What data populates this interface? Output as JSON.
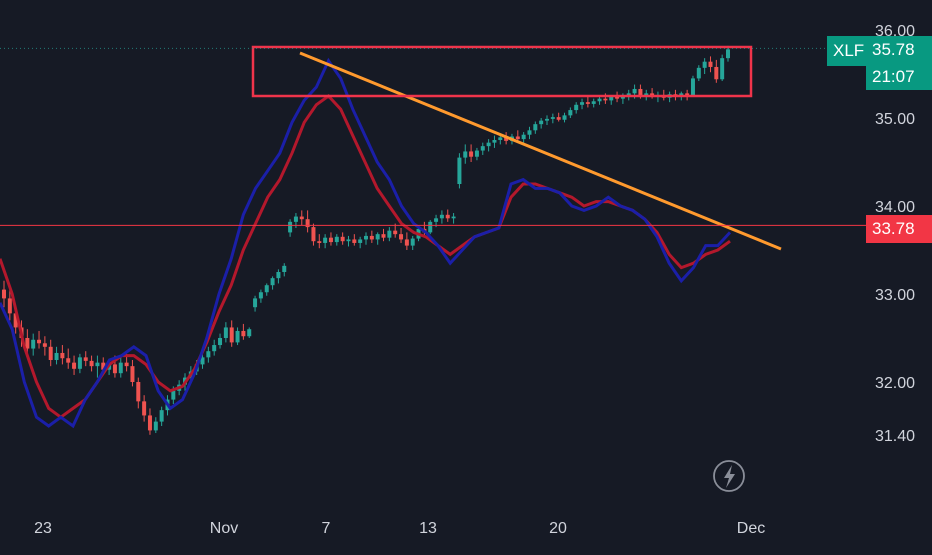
{
  "colors": {
    "background": "#161a25",
    "candle_up": "#26a69a",
    "candle_down": "#ef5350",
    "ma_fast": "#1b1fa8",
    "ma_slow": "#b3182c",
    "trendline": "#ff9a2e",
    "box": "#f0344b",
    "hline": "#f23645",
    "price_tag": "#089981",
    "level_tag": "#f23645",
    "axis_text": "#d1d4dc"
  },
  "chart_data": {
    "type": "candlestick",
    "symbol": "XLF",
    "last_price": "35.78",
    "countdown": "21:07",
    "horizontal_level": "33.78",
    "icon": "lightning-bolt-icon",
    "y_ticks": [
      "36.00",
      "35.00",
      "34.00",
      "33.00",
      "32.00",
      "31.40"
    ],
    "y_tick_values": [
      36.0,
      35.0,
      34.0,
      33.0,
      32.0,
      31.4
    ],
    "x_ticks": [
      "23",
      "Nov",
      "7",
      "13",
      "20",
      "Dec"
    ],
    "ylim": [
      31.4,
      36.0
    ],
    "candles": [
      {
        "o": 33.05,
        "h": 33.15,
        "l": 32.85,
        "c": 32.95
      },
      {
        "o": 32.95,
        "h": 33.05,
        "l": 32.7,
        "c": 32.78
      },
      {
        "o": 32.78,
        "h": 32.85,
        "l": 32.55,
        "c": 32.62
      },
      {
        "o": 32.62,
        "h": 32.7,
        "l": 32.4,
        "c": 32.5
      },
      {
        "o": 32.5,
        "h": 32.6,
        "l": 32.3,
        "c": 32.38
      },
      {
        "o": 32.38,
        "h": 32.55,
        "l": 32.3,
        "c": 32.48
      },
      {
        "o": 32.48,
        "h": 32.58,
        "l": 32.38,
        "c": 32.44
      },
      {
        "o": 32.44,
        "h": 32.52,
        "l": 32.3,
        "c": 32.4
      },
      {
        "o": 32.4,
        "h": 32.48,
        "l": 32.18,
        "c": 32.25
      },
      {
        "o": 32.25,
        "h": 32.4,
        "l": 32.2,
        "c": 32.33
      },
      {
        "o": 32.33,
        "h": 32.42,
        "l": 32.2,
        "c": 32.27
      },
      {
        "o": 32.27,
        "h": 32.38,
        "l": 32.15,
        "c": 32.22
      },
      {
        "o": 32.22,
        "h": 32.3,
        "l": 32.08,
        "c": 32.15
      },
      {
        "o": 32.15,
        "h": 32.32,
        "l": 32.1,
        "c": 32.28
      },
      {
        "o": 32.28,
        "h": 32.35,
        "l": 32.18,
        "c": 32.24
      },
      {
        "o": 32.24,
        "h": 32.3,
        "l": 32.12,
        "c": 32.18
      },
      {
        "o": 32.18,
        "h": 32.3,
        "l": 32.05,
        "c": 32.22
      },
      {
        "o": 32.22,
        "h": 32.28,
        "l": 32.1,
        "c": 32.14
      },
      {
        "o": 32.14,
        "h": 32.26,
        "l": 32.08,
        "c": 32.2
      },
      {
        "o": 32.2,
        "h": 32.3,
        "l": 32.05,
        "c": 32.1
      },
      {
        "o": 32.1,
        "h": 32.28,
        "l": 32.05,
        "c": 32.22
      },
      {
        "o": 32.22,
        "h": 32.32,
        "l": 32.12,
        "c": 32.18
      },
      {
        "o": 32.18,
        "h": 32.25,
        "l": 31.95,
        "c": 32.0
      },
      {
        "o": 32.0,
        "h": 32.05,
        "l": 31.7,
        "c": 31.78
      },
      {
        "o": 31.78,
        "h": 31.85,
        "l": 31.55,
        "c": 31.62
      },
      {
        "o": 31.62,
        "h": 31.7,
        "l": 31.4,
        "c": 31.45
      },
      {
        "o": 31.45,
        "h": 31.6,
        "l": 31.42,
        "c": 31.55
      },
      {
        "o": 31.55,
        "h": 31.72,
        "l": 31.5,
        "c": 31.68
      },
      {
        "o": 31.68,
        "h": 31.85,
        "l": 31.62,
        "c": 31.8
      },
      {
        "o": 31.8,
        "h": 31.95,
        "l": 31.75,
        "c": 31.9
      },
      {
        "o": 31.9,
        "h": 32.02,
        "l": 31.85,
        "c": 31.97
      },
      {
        "o": 31.97,
        "h": 32.1,
        "l": 31.9,
        "c": 32.05
      },
      {
        "o": 32.05,
        "h": 32.18,
        "l": 32.0,
        "c": 32.12
      },
      {
        "o": 32.12,
        "h": 32.25,
        "l": 32.08,
        "c": 32.2
      },
      {
        "o": 32.2,
        "h": 32.32,
        "l": 32.15,
        "c": 32.28
      },
      {
        "o": 32.28,
        "h": 32.4,
        "l": 32.22,
        "c": 32.35
      },
      {
        "o": 32.35,
        "h": 32.48,
        "l": 32.3,
        "c": 32.42
      },
      {
        "o": 32.42,
        "h": 32.55,
        "l": 32.38,
        "c": 32.5
      },
      {
        "o": 32.5,
        "h": 32.68,
        "l": 32.45,
        "c": 32.62
      },
      {
        "o": 32.62,
        "h": 32.7,
        "l": 32.4,
        "c": 32.45
      },
      {
        "o": 32.45,
        "h": 32.62,
        "l": 32.42,
        "c": 32.58
      },
      {
        "o": 32.58,
        "h": 32.66,
        "l": 32.48,
        "c": 32.52
      },
      {
        "o": 32.52,
        "h": 32.62,
        "l": 32.5,
        "c": 32.6
      },
      {
        "o": 32.85,
        "h": 32.98,
        "l": 32.8,
        "c": 32.95
      },
      {
        "o": 32.95,
        "h": 33.05,
        "l": 32.9,
        "c": 33.02
      },
      {
        "o": 33.02,
        "h": 33.12,
        "l": 32.98,
        "c": 33.1
      },
      {
        "o": 33.1,
        "h": 33.2,
        "l": 33.05,
        "c": 33.18
      },
      {
        "o": 33.18,
        "h": 33.28,
        "l": 33.12,
        "c": 33.25
      },
      {
        "o": 33.25,
        "h": 33.35,
        "l": 33.2,
        "c": 33.32
      },
      {
        "o": 33.7,
        "h": 33.85,
        "l": 33.65,
        "c": 33.82
      },
      {
        "o": 33.82,
        "h": 33.92,
        "l": 33.75,
        "c": 33.88
      },
      {
        "o": 33.88,
        "h": 33.95,
        "l": 33.78,
        "c": 33.85
      },
      {
        "o": 33.85,
        "h": 33.95,
        "l": 33.7,
        "c": 33.76
      },
      {
        "o": 33.76,
        "h": 33.8,
        "l": 33.55,
        "c": 33.6
      },
      {
        "o": 33.6,
        "h": 33.68,
        "l": 33.52,
        "c": 33.58
      },
      {
        "o": 33.58,
        "h": 33.68,
        "l": 33.52,
        "c": 33.64
      },
      {
        "o": 33.64,
        "h": 33.7,
        "l": 33.55,
        "c": 33.59
      },
      {
        "o": 33.59,
        "h": 33.68,
        "l": 33.55,
        "c": 33.65
      },
      {
        "o": 33.65,
        "h": 33.7,
        "l": 33.56,
        "c": 33.6
      },
      {
        "o": 33.6,
        "h": 33.66,
        "l": 33.54,
        "c": 33.62
      },
      {
        "o": 33.62,
        "h": 33.68,
        "l": 33.55,
        "c": 33.58
      },
      {
        "o": 33.58,
        "h": 33.65,
        "l": 33.52,
        "c": 33.62
      },
      {
        "o": 33.62,
        "h": 33.7,
        "l": 33.56,
        "c": 33.66
      },
      {
        "o": 33.66,
        "h": 33.72,
        "l": 33.58,
        "c": 33.62
      },
      {
        "o": 33.62,
        "h": 33.7,
        "l": 33.56,
        "c": 33.68
      },
      {
        "o": 33.68,
        "h": 33.74,
        "l": 33.6,
        "c": 33.64
      },
      {
        "o": 33.64,
        "h": 33.76,
        "l": 33.6,
        "c": 33.72
      },
      {
        "o": 33.72,
        "h": 33.8,
        "l": 33.64,
        "c": 33.68
      },
      {
        "o": 33.68,
        "h": 33.75,
        "l": 33.58,
        "c": 33.62
      },
      {
        "o": 33.62,
        "h": 33.7,
        "l": 33.5,
        "c": 33.55
      },
      {
        "o": 33.55,
        "h": 33.66,
        "l": 33.5,
        "c": 33.63
      },
      {
        "o": 33.63,
        "h": 33.76,
        "l": 33.6,
        "c": 33.74
      },
      {
        "o": 33.74,
        "h": 33.82,
        "l": 33.66,
        "c": 33.7
      },
      {
        "o": 33.7,
        "h": 33.84,
        "l": 33.68,
        "c": 33.82
      },
      {
        "o": 33.82,
        "h": 33.9,
        "l": 33.76,
        "c": 33.86
      },
      {
        "o": 33.86,
        "h": 33.95,
        "l": 33.8,
        "c": 33.9
      },
      {
        "o": 33.9,
        "h": 33.96,
        "l": 33.82,
        "c": 33.86
      },
      {
        "o": 33.86,
        "h": 33.92,
        "l": 33.8,
        "c": 33.88
      },
      {
        "o": 34.25,
        "h": 34.6,
        "l": 34.2,
        "c": 34.55
      },
      {
        "o": 34.55,
        "h": 34.7,
        "l": 34.48,
        "c": 34.62
      },
      {
        "o": 34.62,
        "h": 34.7,
        "l": 34.5,
        "c": 34.56
      },
      {
        "o": 34.56,
        "h": 34.66,
        "l": 34.52,
        "c": 34.63
      },
      {
        "o": 34.63,
        "h": 34.72,
        "l": 34.58,
        "c": 34.68
      },
      {
        "o": 34.68,
        "h": 34.76,
        "l": 34.62,
        "c": 34.72
      },
      {
        "o": 34.72,
        "h": 34.8,
        "l": 34.66,
        "c": 34.75
      },
      {
        "o": 34.75,
        "h": 34.82,
        "l": 34.7,
        "c": 34.78
      },
      {
        "o": 34.78,
        "h": 34.84,
        "l": 34.7,
        "c": 34.74
      },
      {
        "o": 34.74,
        "h": 34.82,
        "l": 34.7,
        "c": 34.79
      },
      {
        "o": 34.79,
        "h": 34.86,
        "l": 34.72,
        "c": 34.76
      },
      {
        "o": 34.76,
        "h": 34.84,
        "l": 34.72,
        "c": 34.81
      },
      {
        "o": 34.81,
        "h": 34.9,
        "l": 34.76,
        "c": 34.86
      },
      {
        "o": 34.86,
        "h": 34.96,
        "l": 34.82,
        "c": 34.93
      },
      {
        "o": 34.93,
        "h": 35.0,
        "l": 34.88,
        "c": 34.97
      },
      {
        "o": 34.97,
        "h": 35.03,
        "l": 34.92,
        "c": 34.99
      },
      {
        "o": 34.99,
        "h": 35.05,
        "l": 34.94,
        "c": 35.01
      },
      {
        "o": 35.01,
        "h": 35.06,
        "l": 34.96,
        "c": 34.98
      },
      {
        "o": 34.98,
        "h": 35.06,
        "l": 34.95,
        "c": 35.03
      },
      {
        "o": 35.03,
        "h": 35.12,
        "l": 35.0,
        "c": 35.09
      },
      {
        "o": 35.09,
        "h": 35.18,
        "l": 35.05,
        "c": 35.15
      },
      {
        "o": 35.15,
        "h": 35.22,
        "l": 35.1,
        "c": 35.18
      },
      {
        "o": 35.18,
        "h": 35.24,
        "l": 35.12,
        "c": 35.16
      },
      {
        "o": 35.16,
        "h": 35.22,
        "l": 35.12,
        "c": 35.19
      },
      {
        "o": 35.19,
        "h": 35.26,
        "l": 35.15,
        "c": 35.22
      },
      {
        "o": 35.22,
        "h": 35.28,
        "l": 35.16,
        "c": 35.2
      },
      {
        "o": 35.2,
        "h": 35.26,
        "l": 35.15,
        "c": 35.24
      },
      {
        "o": 35.24,
        "h": 35.3,
        "l": 35.18,
        "c": 35.22
      },
      {
        "o": 35.22,
        "h": 35.28,
        "l": 35.16,
        "c": 35.25
      },
      {
        "o": 35.25,
        "h": 35.32,
        "l": 35.2,
        "c": 35.28
      },
      {
        "o": 35.28,
        "h": 35.38,
        "l": 35.22,
        "c": 35.33
      },
      {
        "o": 35.33,
        "h": 35.38,
        "l": 35.22,
        "c": 35.26
      },
      {
        "o": 35.26,
        "h": 35.32,
        "l": 35.2,
        "c": 35.28
      },
      {
        "o": 35.28,
        "h": 35.34,
        "l": 35.22,
        "c": 35.24
      },
      {
        "o": 35.24,
        "h": 35.3,
        "l": 35.18,
        "c": 35.26
      },
      {
        "o": 35.26,
        "h": 35.32,
        "l": 35.2,
        "c": 35.23
      },
      {
        "o": 35.23,
        "h": 35.3,
        "l": 35.18,
        "c": 35.27
      },
      {
        "o": 35.27,
        "h": 35.32,
        "l": 35.2,
        "c": 35.24
      },
      {
        "o": 35.24,
        "h": 35.3,
        "l": 35.2,
        "c": 35.28
      },
      {
        "o": 35.28,
        "h": 35.32,
        "l": 35.2,
        "c": 35.25
      },
      {
        "o": 35.25,
        "h": 35.48,
        "l": 35.24,
        "c": 35.45
      },
      {
        "o": 35.45,
        "h": 35.6,
        "l": 35.42,
        "c": 35.57
      },
      {
        "o": 35.57,
        "h": 35.68,
        "l": 35.5,
        "c": 35.64
      },
      {
        "o": 35.64,
        "h": 35.7,
        "l": 35.52,
        "c": 35.58
      },
      {
        "o": 35.58,
        "h": 35.66,
        "l": 35.4,
        "c": 35.44
      },
      {
        "o": 35.44,
        "h": 35.72,
        "l": 35.42,
        "c": 35.68
      },
      {
        "o": 35.68,
        "h": 35.82,
        "l": 35.64,
        "c": 35.78
      }
    ],
    "ma_fast": [
      [
        0,
        32.9
      ],
      [
        5,
        32.6
      ],
      [
        10,
        32.0
      ],
      [
        15,
        31.6
      ],
      [
        20,
        31.5
      ],
      [
        25,
        31.6
      ],
      [
        30,
        31.5
      ],
      [
        35,
        31.8
      ],
      [
        40,
        32.0
      ],
      [
        45,
        32.25
      ],
      [
        50,
        32.3
      ],
      [
        55,
        32.4
      ],
      [
        60,
        32.3
      ],
      [
        65,
        31.9
      ],
      [
        70,
        31.7
      ],
      [
        75,
        31.8
      ],
      [
        80,
        32.1
      ],
      [
        85,
        32.5
      ],
      [
        90,
        33.0
      ],
      [
        95,
        33.4
      ],
      [
        100,
        33.9
      ],
      [
        105,
        34.2
      ],
      [
        110,
        34.4
      ],
      [
        115,
        34.6
      ],
      [
        120,
        34.95
      ],
      [
        125,
        35.2
      ],
      [
        130,
        35.35
      ],
      [
        135,
        35.65
      ],
      [
        140,
        35.45
      ],
      [
        145,
        35.1
      ],
      [
        150,
        34.8
      ],
      [
        155,
        34.5
      ],
      [
        160,
        34.3
      ],
      [
        165,
        34.0
      ],
      [
        170,
        33.8
      ],
      [
        175,
        33.7
      ],
      [
        180,
        33.55
      ],
      [
        185,
        33.35
      ],
      [
        190,
        33.5
      ],
      [
        195,
        33.65
      ],
      [
        200,
        33.7
      ],
      [
        205,
        33.75
      ],
      [
        210,
        34.25
      ],
      [
        215,
        34.3
      ],
      [
        220,
        34.2
      ],
      [
        225,
        34.2
      ],
      [
        230,
        34.15
      ],
      [
        235,
        34.0
      ],
      [
        240,
        33.95
      ],
      [
        245,
        34.0
      ],
      [
        250,
        34.1
      ],
      [
        255,
        34.0
      ],
      [
        260,
        33.95
      ],
      [
        265,
        33.85
      ],
      [
        270,
        33.65
      ],
      [
        275,
        33.35
      ],
      [
        280,
        33.15
      ],
      [
        285,
        33.3
      ],
      [
        290,
        33.55
      ],
      [
        295,
        33.55
      ],
      [
        300,
        33.7
      ]
    ],
    "ma_slow": [
      [
        0,
        33.4
      ],
      [
        5,
        33.0
      ],
      [
        10,
        32.4
      ],
      [
        15,
        32.0
      ],
      [
        20,
        31.7
      ],
      [
        25,
        31.6
      ],
      [
        30,
        31.7
      ],
      [
        35,
        31.8
      ],
      [
        40,
        32.0
      ],
      [
        45,
        32.2
      ],
      [
        50,
        32.3
      ],
      [
        55,
        32.3
      ],
      [
        60,
        32.2
      ],
      [
        65,
        32.0
      ],
      [
        70,
        31.9
      ],
      [
        75,
        31.95
      ],
      [
        80,
        32.15
      ],
      [
        85,
        32.45
      ],
      [
        90,
        32.8
      ],
      [
        95,
        33.1
      ],
      [
        100,
        33.5
      ],
      [
        105,
        33.8
      ],
      [
        110,
        34.1
      ],
      [
        115,
        34.3
      ],
      [
        120,
        34.6
      ],
      [
        125,
        34.95
      ],
      [
        130,
        35.15
      ],
      [
        135,
        35.25
      ],
      [
        140,
        35.1
      ],
      [
        145,
        34.8
      ],
      [
        150,
        34.5
      ],
      [
        155,
        34.2
      ],
      [
        160,
        34.0
      ],
      [
        165,
        33.8
      ],
      [
        170,
        33.7
      ],
      [
        175,
        33.65
      ],
      [
        180,
        33.55
      ],
      [
        185,
        33.45
      ],
      [
        190,
        33.55
      ],
      [
        195,
        33.65
      ],
      [
        200,
        33.7
      ],
      [
        205,
        33.75
      ],
      [
        210,
        34.1
      ],
      [
        215,
        34.25
      ],
      [
        220,
        34.25
      ],
      [
        225,
        34.2
      ],
      [
        230,
        34.15
      ],
      [
        235,
        34.1
      ],
      [
        240,
        34.0
      ],
      [
        245,
        34.05
      ],
      [
        250,
        34.05
      ],
      [
        255,
        34.0
      ],
      [
        260,
        33.95
      ],
      [
        265,
        33.85
      ],
      [
        270,
        33.7
      ],
      [
        275,
        33.45
      ],
      [
        280,
        33.3
      ],
      [
        285,
        33.35
      ],
      [
        290,
        33.45
      ],
      [
        295,
        33.5
      ],
      [
        300,
        33.6
      ]
    ]
  }
}
